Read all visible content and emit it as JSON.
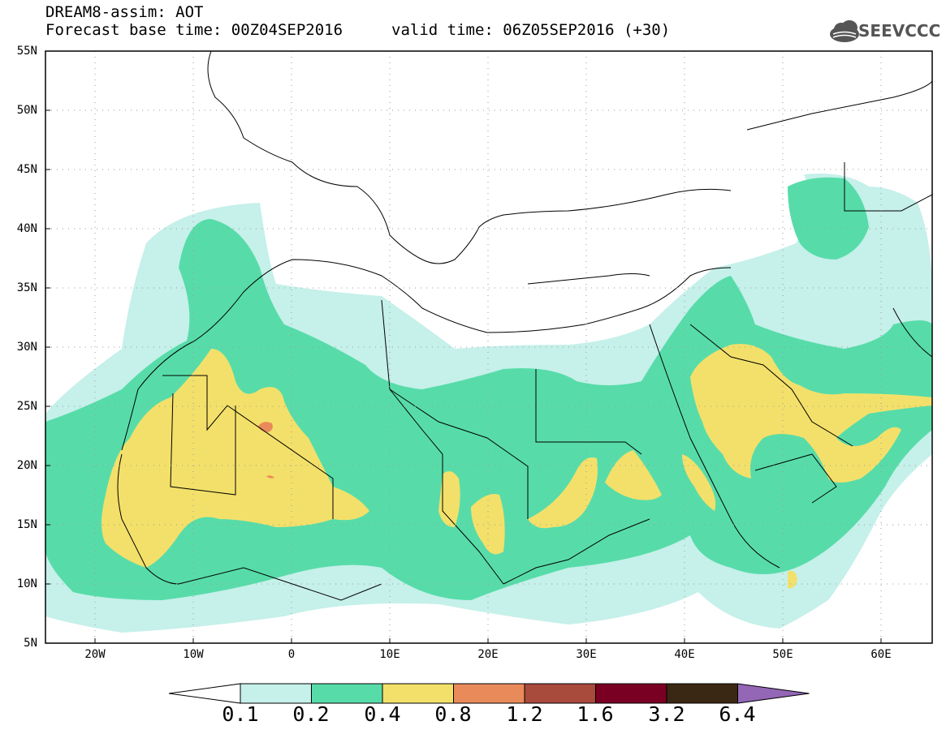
{
  "title": {
    "line1": "DREAM8-assim: AOT",
    "base_time": "Forecast base time: 00Z04SEP2016",
    "valid_time": "valid time: 06Z05SEP2016 (+30)"
  },
  "logo": {
    "text": "SEEVCCC",
    "icon": "cloud-icon"
  },
  "map": {
    "variable": "AOT",
    "lat_labels": [
      "55N",
      "50N",
      "45N",
      "40N",
      "35N",
      "30N",
      "25N",
      "20N",
      "15N",
      "10N",
      "5N"
    ],
    "lon_labels": [
      "20W",
      "10W",
      "0",
      "10E",
      "20E",
      "30E",
      "40E",
      "50E",
      "60E"
    ],
    "lat_range": [
      5,
      55
    ],
    "lon_range": [
      -25,
      65
    ],
    "grid": "dotted"
  },
  "colorbar": {
    "levels": [
      "0.1",
      "0.2",
      "0.4",
      "0.8",
      "1.2",
      "1.6",
      "3.2",
      "6.4"
    ],
    "colors": [
      "#ffffff",
      "#c6f0ea",
      "#57dca9",
      "#f3e06a",
      "#e98a5a",
      "#a84a3c",
      "#7a0023",
      "#3a2814",
      "#9366b6"
    ]
  }
}
